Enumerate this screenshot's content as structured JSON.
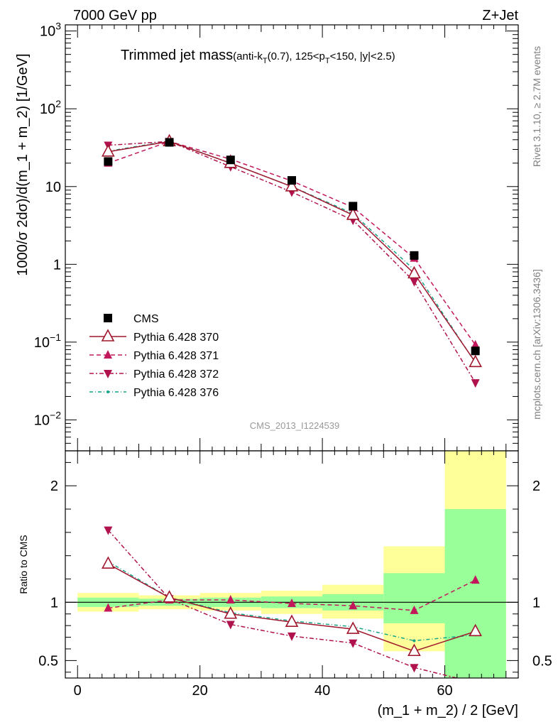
{
  "header": {
    "left": "7000 GeV pp",
    "right": "Z+Jet"
  },
  "title": {
    "main": "Trimmed jet mass",
    "sub": "(anti-k_T(0.7), 125<p_T<150, |y|<2.5)"
  },
  "side_labels": {
    "rivet": "Rivet 3.1.10, ≥ 2.7M events",
    "mcplots": "mcplots.cern.ch [arXiv:1306.3436]"
  },
  "analysis_id": "CMS_2013_I1224539",
  "colors": {
    "data": "#000000",
    "p370": "#a0162d",
    "p371": "#c2185b",
    "p372": "#b0124e",
    "p376": "#17a589",
    "band_inner": "#99ff99",
    "band_outer": "#ffff99"
  },
  "chart_data": [
    {
      "type": "line",
      "ylabel": "1000/σ 2dσ)/d(m_1 + m_2) [1/GeV]",
      "yscale": "log",
      "ylim": [
        0.004,
        1200
      ],
      "xlim": [
        -2,
        72
      ],
      "y_ticks": [
        "10^-2",
        "10^-1",
        "1",
        "10",
        "10^2",
        "10^3"
      ],
      "x": [
        5,
        15,
        25,
        35,
        45,
        55,
        65
      ],
      "legend_position": "left",
      "series": [
        {
          "name": "CMS",
          "values": [
            21,
            37,
            22,
            12,
            5.6,
            1.3,
            0.077
          ]
        },
        {
          "name": "Pythia 6.428 370",
          "values": [
            28,
            38,
            20,
            10,
            4.3,
            0.76,
            0.055
          ]
        },
        {
          "name": "Pythia 6.428 371",
          "values": [
            20,
            38,
            22.5,
            11.8,
            5.4,
            1.2,
            0.092
          ]
        },
        {
          "name": "Pythia 6.428 372",
          "values": [
            34,
            38,
            18,
            8.5,
            3.7,
            0.6,
            0.03
          ]
        },
        {
          "name": "Pythia 6.428 376",
          "values": [
            28.5,
            38.5,
            20,
            10,
            4.5,
            0.85,
            0.054
          ]
        }
      ]
    },
    {
      "type": "line",
      "ylabel": "Ratio to CMS",
      "xlabel": "(m_1 + m_2) / 2 [GeV]",
      "ylim": [
        0.35,
        2.3
      ],
      "xlim": [
        -2,
        72
      ],
      "x_ticks": [
        "0",
        "20",
        "40",
        "60"
      ],
      "y_ticks": [
        "0.5",
        "1",
        "2"
      ],
      "x": [
        5,
        15,
        25,
        35,
        45,
        55,
        65
      ],
      "bins": [
        [
          0,
          10
        ],
        [
          10,
          20
        ],
        [
          20,
          30
        ],
        [
          30,
          40
        ],
        [
          40,
          50
        ],
        [
          50,
          60
        ],
        [
          60,
          70
        ]
      ],
      "band_inner": [
        [
          0.96,
          1.04
        ],
        [
          0.97,
          1.03
        ],
        [
          0.96,
          1.04
        ],
        [
          0.95,
          1.05
        ],
        [
          0.93,
          1.07
        ],
        [
          0.82,
          1.25
        ],
        [
          0.3,
          1.8
        ]
      ],
      "band_outer": [
        [
          0.92,
          1.08
        ],
        [
          0.94,
          1.06
        ],
        [
          0.93,
          1.08
        ],
        [
          0.9,
          1.1
        ],
        [
          0.86,
          1.15
        ],
        [
          0.58,
          1.48
        ],
        [
          0.3,
          2.4
        ]
      ],
      "series": [
        {
          "name": "Pythia 6.428 370",
          "values": [
            1.33,
            1.04,
            0.9,
            0.83,
            0.77,
            0.58,
            0.75
          ]
        },
        {
          "name": "Pythia 6.428 371",
          "values": [
            0.95,
            1.02,
            1.02,
            0.99,
            0.97,
            0.93,
            1.19
          ]
        },
        {
          "name": "Pythia 6.428 372",
          "values": [
            1.62,
            1.03,
            0.81,
            0.71,
            0.65,
            0.44,
            0.31
          ]
        },
        {
          "name": "Pythia 6.428 376",
          "values": [
            1.35,
            1.04,
            0.91,
            0.84,
            0.79,
            0.67,
            0.72
          ]
        }
      ]
    }
  ]
}
